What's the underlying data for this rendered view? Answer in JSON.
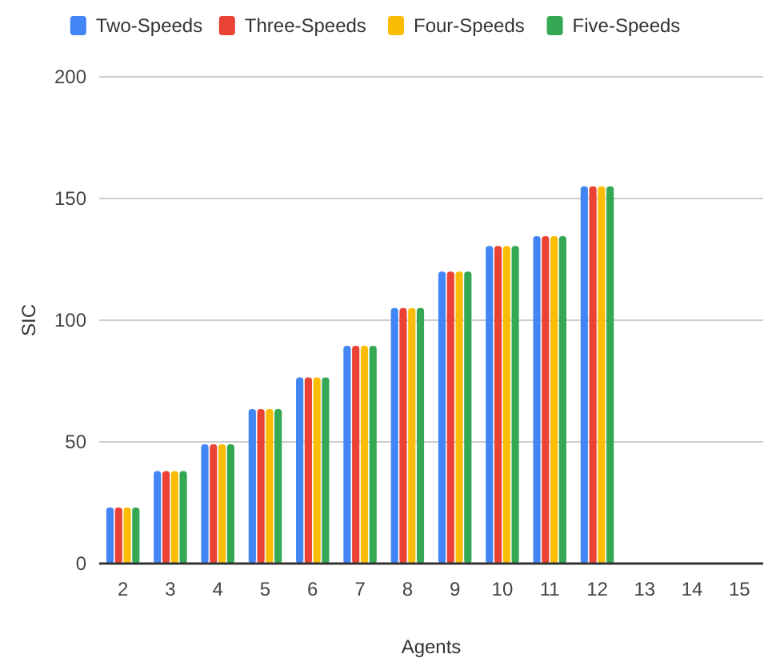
{
  "chart_data": {
    "type": "bar",
    "xlabel": "Agents",
    "ylabel": "SIC",
    "categories": [
      "2",
      "3",
      "4",
      "5",
      "6",
      "7",
      "8",
      "9",
      "10",
      "11",
      "12",
      "13",
      "14",
      "15"
    ],
    "series": [
      {
        "name": "Two-Speeds",
        "color": "#4285f4",
        "values": [
          23,
          38,
          49,
          63.5,
          76.5,
          89.5,
          105,
          120,
          130.5,
          134.5,
          155,
          null,
          null,
          null
        ]
      },
      {
        "name": "Three-Speeds",
        "color": "#ea4335",
        "values": [
          23,
          38,
          49,
          63.5,
          76.5,
          89.5,
          105,
          120,
          130.5,
          134.5,
          155,
          null,
          null,
          null
        ]
      },
      {
        "name": "Four-Speeds",
        "color": "#fbbc04",
        "values": [
          23,
          38,
          49,
          63.5,
          76.5,
          89.5,
          105,
          120,
          130.5,
          134.5,
          155,
          null,
          null,
          null
        ]
      },
      {
        "name": "Five-Speeds",
        "color": "#34a853",
        "values": [
          23,
          38,
          49,
          63.5,
          76.5,
          89.5,
          105,
          120,
          130.5,
          134.5,
          155,
          null,
          null,
          null
        ]
      }
    ],
    "ylim": [
      0,
      200
    ],
    "yticks": [
      0,
      50,
      100,
      150,
      200
    ],
    "grid": "y",
    "legend": "top"
  }
}
